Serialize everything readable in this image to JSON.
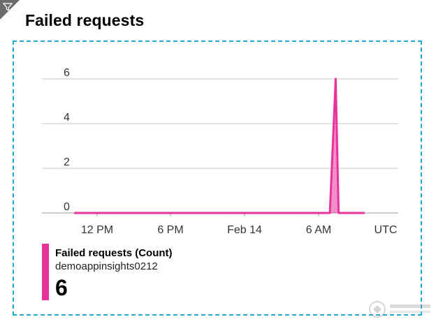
{
  "header": {
    "filter_icon": "filter-icon",
    "title": "Failed requests"
  },
  "chart_data": {
    "type": "area",
    "title": "",
    "xlabel": "",
    "ylabel": "",
    "timezone_label": "UTC",
    "x_tick_labels": [
      "12 PM",
      "6 PM",
      "Feb 14",
      "6 AM"
    ],
    "y_ticks": [
      0,
      2,
      4,
      6
    ],
    "ylim": [
      0,
      6
    ],
    "grid": true,
    "series": [
      {
        "name": "Failed requests (Count)",
        "color": "#e8339a",
        "x": [
          0,
          0.86,
          0.88,
          0.9,
          0.91,
          1.0
        ],
        "values": [
          0,
          0,
          0,
          6,
          0,
          0
        ]
      }
    ]
  },
  "legend": {
    "metric_label": "Failed requests (Count)",
    "resource": "demoappinsights0212",
    "value": "6",
    "color": "#e8339a"
  }
}
